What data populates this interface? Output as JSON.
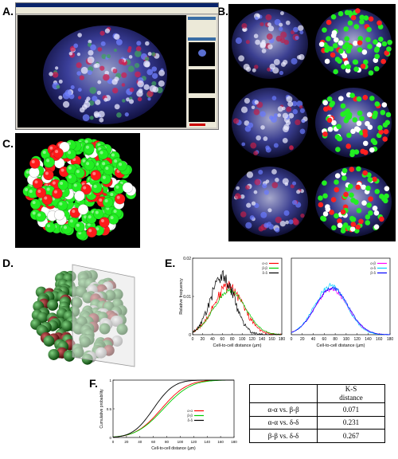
{
  "labels": {
    "A": "A.",
    "B": "B.",
    "C": "C.",
    "D": "D.",
    "E": "E.",
    "F": "F."
  },
  "colors": {
    "alpha": "#ff0000",
    "beta": "#00cc00",
    "delta": "#000000",
    "alpha_beta": "#ff00ff",
    "alpha_delta": "#00d0ff",
    "beta_delta": "#0000ff"
  },
  "chart_data": [
    {
      "type": "line",
      "panel": "E-left",
      "xlabel": "Cell-to-cell distance (µm)",
      "ylabel": "Relative frequency",
      "xlim": [
        0,
        180
      ],
      "ylim": [
        0,
        0.02
      ],
      "xticks": [
        0,
        20,
        40,
        60,
        80,
        100,
        120,
        140,
        160,
        180
      ],
      "yticks": [
        0,
        0.01,
        0.02
      ],
      "ytick_labels": [
        "0",
        "0.01",
        "0.02"
      ],
      "legend": [
        "α-α",
        "β-β",
        "δ-δ"
      ],
      "series": [
        {
          "name": "α-α",
          "color": "#ff0000",
          "mu": 72,
          "sigma": 30,
          "peak": 0.0125,
          "noise": 0.0014
        },
        {
          "name": "β-β",
          "color": "#00cc00",
          "mu": 75,
          "sigma": 32,
          "peak": 0.0115,
          "noise": 0.0005
        },
        {
          "name": "δ-δ",
          "color": "#000000",
          "mu": 60,
          "sigma": 24,
          "peak": 0.0152,
          "noise": 0.0018
        }
      ]
    },
    {
      "type": "line",
      "panel": "E-right",
      "xlabel": "Cell-to-cell distance (µm)",
      "xlim": [
        0,
        180
      ],
      "ylim": [
        0,
        0.02
      ],
      "xticks": [
        0,
        20,
        40,
        60,
        80,
        100,
        120,
        140,
        160,
        180
      ],
      "legend": [
        "α-β",
        "α-δ",
        "β-δ"
      ],
      "series": [
        {
          "name": "α-β",
          "color": "#ff00ff",
          "mu": 73,
          "sigma": 30,
          "peak": 0.0118,
          "noise": 0.0004
        },
        {
          "name": "α-δ",
          "color": "#00d0ff",
          "mu": 72,
          "sigma": 29,
          "peak": 0.0128,
          "noise": 0.0006
        },
        {
          "name": "β-δ",
          "color": "#0000ff",
          "mu": 74,
          "sigma": 30,
          "peak": 0.0122,
          "noise": 0.0004
        }
      ]
    },
    {
      "type": "line",
      "panel": "F",
      "xlabel": "Cell-to-cell distance (µm)",
      "ylabel": "Cumulative probability",
      "xlim": [
        0,
        180
      ],
      "ylim": [
        0,
        1
      ],
      "xticks": [
        0,
        20,
        40,
        60,
        80,
        100,
        120,
        140,
        160,
        180
      ],
      "yticks": [
        0,
        0.5,
        1
      ],
      "legend": [
        "α-α",
        "β-β",
        "δ-δ"
      ],
      "series": [
        {
          "name": "α-α",
          "color": "#ff0000",
          "mu": 72,
          "sigma": 30
        },
        {
          "name": "β-β",
          "color": "#00cc00",
          "mu": 75,
          "sigma": 32
        },
        {
          "name": "δ-δ",
          "color": "#000000",
          "mu": 60,
          "sigma": 24
        }
      ]
    }
  ],
  "ks_table": {
    "header": [
      "",
      "K-S\ndistance"
    ],
    "rows": [
      {
        "pair": "α-α vs. β-β",
        "value": "0.071"
      },
      {
        "pair": "α-α vs. δ-δ",
        "value": "0.231"
      },
      {
        "pair": "β-β vs. δ-δ",
        "value": "0.267"
      }
    ]
  }
}
